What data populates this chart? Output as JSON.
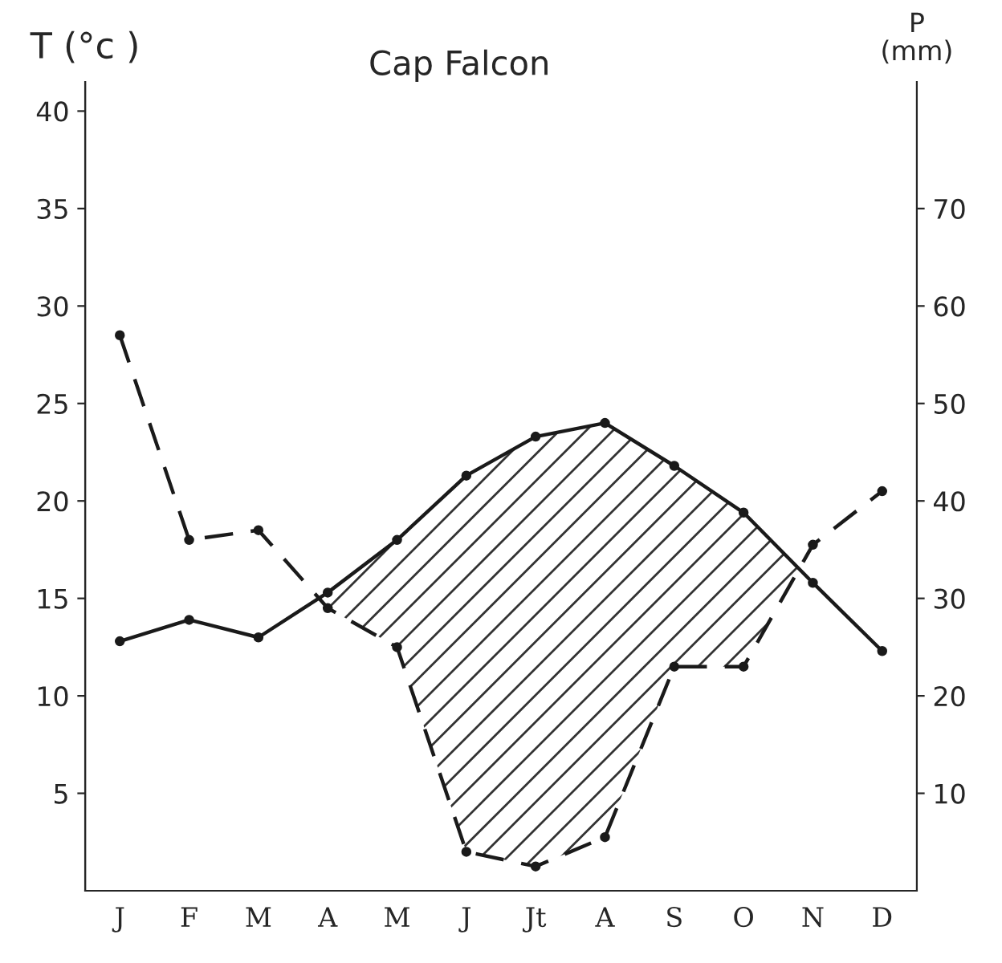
{
  "chart_data": {
    "type": "line",
    "title": "Cap Falcon",
    "ylabel": "T (°c )",
    "y2label": "P\n(mm)",
    "categories": [
      "J",
      "F",
      "M",
      "A",
      "M",
      "J",
      "Jt",
      "A",
      "S",
      "O",
      "N",
      "D"
    ],
    "series": [
      {
        "color": "#1a1a1a",
        "line_style": "solid",
        "values": [
          12.8,
          13.9,
          13.0,
          15.3,
          18.0,
          21.3,
          23.3,
          24.0,
          21.8,
          19.4,
          15.8,
          12.3
        ]
      },
      {
        "color": "#1a1a1a",
        "line_style": "dashed",
        "axis": "y2",
        "values": [
          57,
          36,
          37,
          29,
          25,
          4,
          2.5,
          5.5,
          23,
          23,
          35.5,
          41
        ]
      }
    ],
    "ylim": [
      0,
      41.5
    ],
    "yticks": [
      5,
      10,
      15,
      20,
      25,
      30,
      35,
      40
    ],
    "y2lim": [
      0,
      83
    ],
    "y2ticks": [
      10,
      20,
      30,
      40,
      50,
      60,
      70
    ],
    "marker": "circle",
    "grid": false,
    "legend": false
  }
}
